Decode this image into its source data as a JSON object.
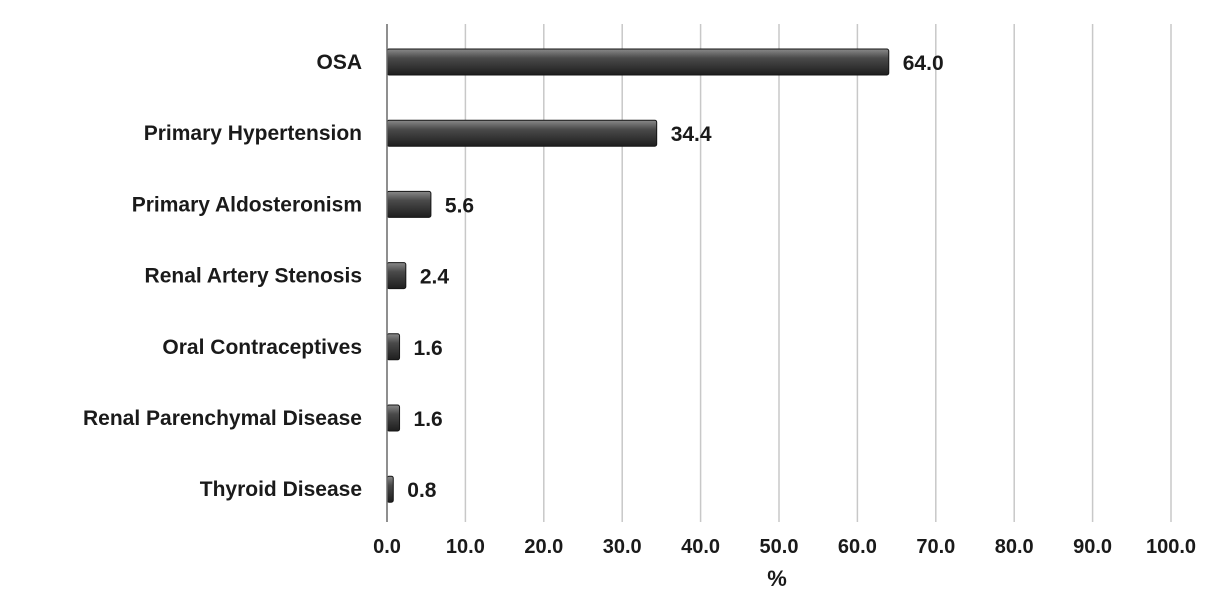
{
  "chart_data": {
    "type": "bar",
    "orientation": "horizontal",
    "categories": [
      "OSA",
      "Primary Hypertension",
      "Primary Aldosteronism",
      "Renal Artery Stenosis",
      "Oral Contraceptives",
      "Renal Parenchymal Disease",
      "Thyroid Disease"
    ],
    "values": [
      64.0,
      34.4,
      5.6,
      2.4,
      1.6,
      1.6,
      0.8
    ],
    "value_labels": [
      "64.0",
      "34.4",
      "5.6",
      "2.4",
      "1.6",
      "1.6",
      "0.8"
    ],
    "title": "",
    "xlabel": "%",
    "ylabel": "",
    "xlim": [
      0,
      100
    ],
    "x_ticks": [
      "0.0",
      "10.0",
      "20.0",
      "30.0",
      "40.0",
      "50.0",
      "60.0",
      "70.0",
      "80.0",
      "90.0",
      "100.0"
    ],
    "grid": "vertical",
    "legend": "none",
    "bar_color": "#3a3a3a"
  }
}
